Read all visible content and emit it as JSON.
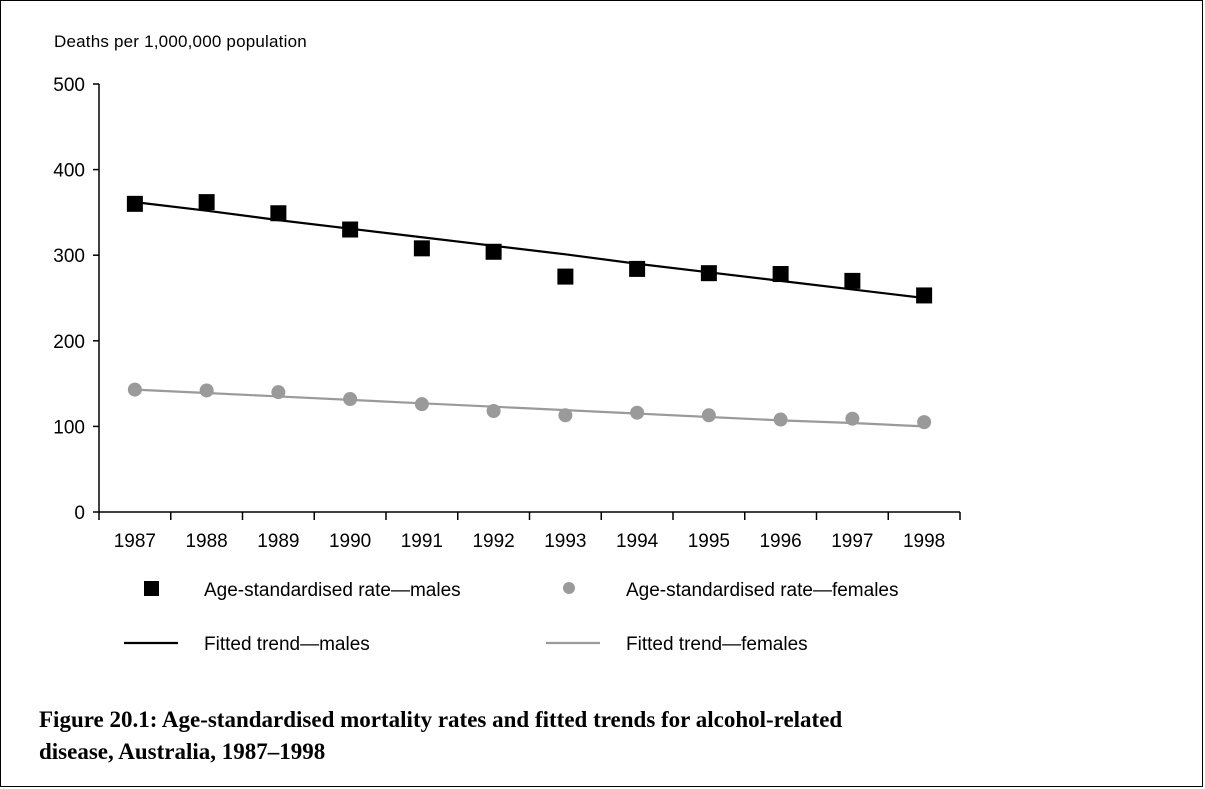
{
  "figure": {
    "caption_line1": "Figure 20.1: Age-standardised mortality rates and fitted trends for alcohol-related",
    "caption_line2": "disease, Australia, 1987–1998"
  },
  "chart_data": {
    "type": "scatter",
    "title": "",
    "ylabel": "Deaths per 1,000,000 population",
    "xlabel": "",
    "ylim": [
      0,
      500
    ],
    "yticks": [
      0,
      100,
      200,
      300,
      400,
      500
    ],
    "categories": [
      "1987",
      "1988",
      "1989",
      "1990",
      "1991",
      "1992",
      "1993",
      "1994",
      "1995",
      "1996",
      "1997",
      "1998"
    ],
    "grid": false,
    "legend_position": "bottom",
    "series": [
      {
        "name": "Age-standardised rate—males",
        "kind": "points",
        "marker": "square",
        "color": "#000000",
        "values": [
          360,
          362,
          349,
          330,
          308,
          304,
          275,
          284,
          279,
          278,
          270,
          253
        ]
      },
      {
        "name": "Age-standardised rate—females",
        "kind": "points",
        "marker": "circle",
        "color": "#9a9a9a",
        "values": [
          143,
          142,
          140,
          132,
          126,
          118,
          113,
          116,
          113,
          108,
          109,
          105
        ]
      },
      {
        "name": "Fitted trend—males",
        "kind": "line",
        "color": "#000000",
        "values": [
          362,
          352,
          341,
          331,
          321,
          311,
          301,
          290,
          280,
          270,
          260,
          250
        ]
      },
      {
        "name": "Fitted trend—females",
        "kind": "line",
        "color": "#9a9a9a",
        "values": [
          143,
          139,
          135,
          131,
          127,
          123,
          119,
          115,
          111,
          107,
          104,
          100
        ]
      }
    ]
  }
}
